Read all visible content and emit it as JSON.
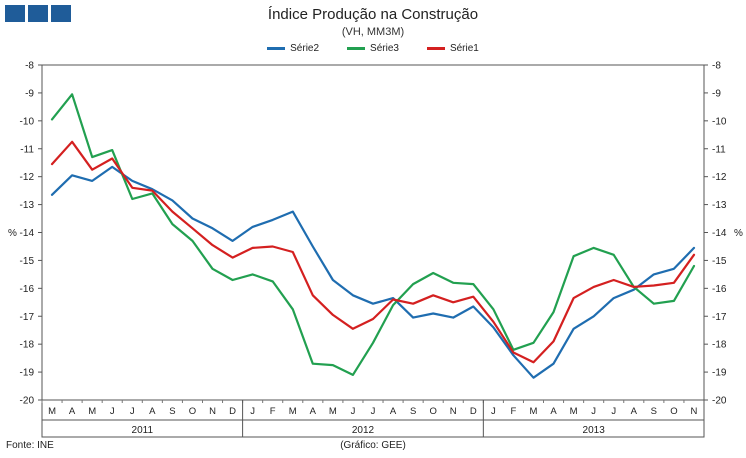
{
  "header": {
    "logo_name": "brand-logo",
    "brand_color": "#1f5c99"
  },
  "chart_data": {
    "type": "line",
    "title": "Índice Produção na Construção",
    "subtitle": "(VH, MM3M)",
    "ylabel": "%",
    "ylim": [
      -20,
      -8
    ],
    "yticks": [
      -8,
      -9,
      -10,
      -11,
      -12,
      -13,
      -14,
      -15,
      -16,
      -17,
      -18,
      -19,
      -20
    ],
    "grid": false,
    "legend_position": "top-center",
    "categories": [
      "M",
      "A",
      "M",
      "J",
      "J",
      "A",
      "S",
      "O",
      "N",
      "D",
      "J",
      "F",
      "M",
      "A",
      "M",
      "J",
      "J",
      "A",
      "S",
      "O",
      "N",
      "D",
      "J",
      "F",
      "M",
      "A",
      "M",
      "J",
      "J",
      "A",
      "S",
      "O",
      "N"
    ],
    "year_groups": [
      {
        "label": "2011",
        "start": 0,
        "end": 9
      },
      {
        "label": "2012",
        "start": 10,
        "end": 21
      },
      {
        "label": "2013",
        "start": 22,
        "end": 32
      }
    ],
    "series": [
      {
        "name": "Série2",
        "color": "#1f6db0",
        "values": [
          -12.65,
          -11.95,
          -12.15,
          -11.65,
          -12.15,
          -12.45,
          -12.85,
          -13.5,
          -13.85,
          -14.3,
          -13.8,
          -13.55,
          -13.25,
          -14.5,
          -15.7,
          -16.25,
          -16.55,
          -16.35,
          -17.05,
          -16.9,
          -17.05,
          -16.65,
          -17.4,
          -18.4,
          -19.2,
          -18.7,
          -17.45,
          -17.0,
          -16.35,
          -16.05,
          -15.5,
          -15.3,
          -14.55
        ]
      },
      {
        "name": "Série3",
        "color": "#22a050",
        "values": [
          -9.95,
          -9.05,
          -11.3,
          -11.05,
          -12.8,
          -12.6,
          -13.7,
          -14.3,
          -15.3,
          -15.7,
          -15.5,
          -15.75,
          -16.75,
          -18.7,
          -18.75,
          -19.1,
          -17.95,
          -16.6,
          -15.85,
          -15.45,
          -15.8,
          -15.85,
          -16.75,
          -18.2,
          -17.95,
          -16.85,
          -14.85,
          -14.55,
          -14.8,
          -15.95,
          -16.55,
          -16.45,
          -15.2
        ]
      },
      {
        "name": "Série1",
        "color": "#d42020",
        "values": [
          -11.55,
          -10.75,
          -11.75,
          -11.35,
          -12.4,
          -12.5,
          -13.25,
          -13.85,
          -14.45,
          -14.9,
          -14.55,
          -14.5,
          -14.7,
          -16.25,
          -16.95,
          -17.45,
          -17.1,
          -16.4,
          -16.55,
          -16.25,
          -16.5,
          -16.3,
          -17.2,
          -18.3,
          -18.65,
          -17.9,
          -16.35,
          -15.95,
          -15.7,
          -15.95,
          -15.9,
          -15.8,
          -14.8
        ]
      }
    ]
  },
  "footer": {
    "source": "Fonte: INE",
    "credit": "(Gráfico: GEE)"
  }
}
